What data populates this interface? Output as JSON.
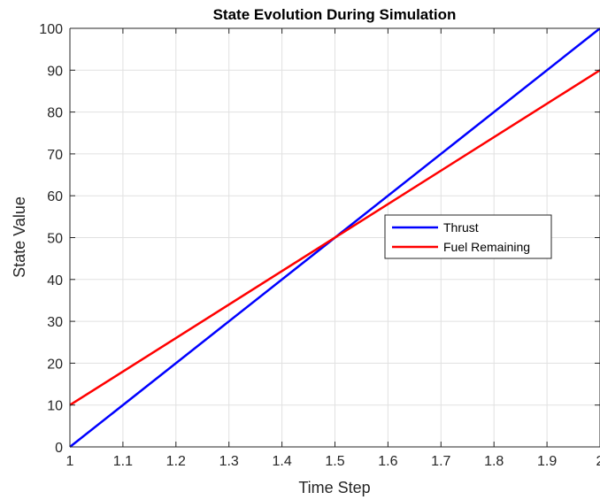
{
  "chart_data": {
    "type": "line",
    "title": "State Evolution During Simulation",
    "xlabel": "Time Step",
    "ylabel": "State Value",
    "xlim": [
      1,
      2
    ],
    "ylim": [
      0,
      100
    ],
    "xticks": [
      "1",
      "1.1",
      "1.2",
      "1.3",
      "1.4",
      "1.5",
      "1.6",
      "1.7",
      "1.8",
      "1.9",
      "2"
    ],
    "yticks": [
      "0",
      "10",
      "20",
      "30",
      "40",
      "50",
      "60",
      "70",
      "80",
      "90",
      "100"
    ],
    "grid": true,
    "legend_position": "middle-right",
    "series": [
      {
        "name": "Thrust",
        "color": "#0000ff",
        "x": [
          1,
          2
        ],
        "y": [
          0,
          100
        ]
      },
      {
        "name": "Fuel Remaining",
        "color": "#ff0000",
        "x": [
          1,
          2
        ],
        "y": [
          10,
          90
        ]
      }
    ]
  }
}
